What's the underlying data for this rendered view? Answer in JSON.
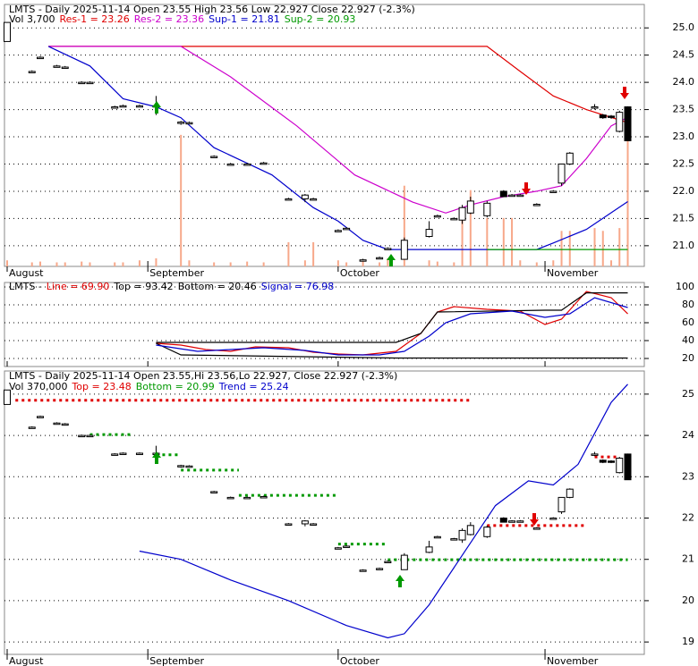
{
  "chart_data": [
    {
      "type": "candlestick",
      "title": "LMTS - Daily 2025-11-14 Open 23.55  High 23.56  Low 22.927  Close 22.927 (-2.3%)",
      "x": [
        0,
        3,
        4,
        6,
        7,
        9,
        10,
        13,
        14,
        16,
        18,
        21,
        22,
        25,
        27,
        29,
        31,
        34,
        36,
        37,
        40,
        41,
        43,
        45,
        46,
        48,
        51,
        52,
        54,
        55,
        56,
        58,
        60,
        61,
        62,
        64,
        66,
        67,
        68,
        71,
        72,
        73,
        74,
        75
      ],
      "open": [
        24.75,
        24.2,
        24.46,
        24.3,
        24.28,
        24.0,
        24.0,
        23.55,
        23.57,
        23.57,
        23.57,
        23.27,
        23.26,
        22.64,
        22.5,
        22.5,
        22.52,
        21.86,
        21.86,
        21.86,
        21.28,
        21.32,
        20.74,
        20.78,
        20.95,
        20.75,
        21.17,
        21.55,
        21.5,
        21.47,
        21.6,
        21.55,
        22.0,
        21.93,
        21.93,
        21.76,
        22.0,
        22.15,
        22.5,
        23.55,
        23.4,
        23.38,
        23.1,
        23.55
      ],
      "high": [
        25.1,
        24.22,
        24.48,
        24.32,
        24.3,
        24.02,
        24.02,
        23.57,
        23.59,
        23.59,
        23.75,
        23.29,
        23.28,
        22.66,
        22.52,
        22.52,
        22.54,
        21.88,
        21.95,
        21.88,
        21.3,
        21.34,
        20.76,
        20.8,
        20.97,
        21.15,
        21.45,
        21.57,
        21.52,
        21.75,
        21.9,
        21.82,
        22.02,
        21.95,
        21.95,
        21.78,
        22.02,
        22.5,
        22.72,
        23.6,
        23.42,
        23.4,
        23.48,
        23.56
      ],
      "low": [
        24.75,
        24.18,
        24.44,
        24.28,
        24.26,
        23.98,
        23.98,
        23.53,
        23.55,
        23.55,
        23.4,
        23.22,
        23.24,
        22.62,
        22.48,
        22.48,
        22.5,
        21.84,
        21.8,
        21.84,
        21.26,
        21.3,
        20.72,
        20.76,
        20.93,
        20.75,
        21.15,
        21.53,
        21.48,
        21.4,
        21.58,
        21.52,
        21.9,
        21.91,
        21.91,
        21.74,
        21.98,
        22.1,
        22.48,
        23.5,
        23.33,
        23.33,
        23.08,
        22.927
      ],
      "close": [
        25.1,
        24.2,
        24.46,
        24.3,
        24.28,
        24.0,
        24.0,
        23.55,
        23.57,
        23.57,
        23.57,
        23.27,
        23.26,
        22.64,
        22.5,
        22.5,
        22.52,
        21.86,
        21.93,
        21.86,
        21.28,
        21.32,
        20.74,
        20.78,
        20.95,
        21.1,
        21.3,
        21.55,
        21.5,
        21.7,
        21.82,
        21.78,
        21.9,
        21.93,
        21.93,
        21.76,
        22.0,
        22.5,
        22.7,
        23.55,
        23.35,
        23.36,
        23.45,
        22.927
      ],
      "volume": {
        "name": "Vol 3,700",
        "color": "#f7a88a",
        "values": [
          150,
          100,
          120,
          100,
          100,
          120,
          100,
          100,
          100,
          150,
          200,
          3260,
          150,
          100,
          100,
          120,
          100,
          600,
          150,
          600,
          150,
          100,
          150,
          100,
          200,
          2000,
          150,
          120,
          100,
          1200,
          1890,
          1200,
          1200,
          1200,
          150,
          100,
          150,
          880,
          880,
          950,
          880,
          150,
          950,
          3700
        ]
      },
      "series": [
        {
          "name": "Res-1 = 23.26",
          "color": "#e00000",
          "x": [
            5,
            58,
            62,
            66,
            70,
            75
          ],
          "values": [
            24.66,
            24.66,
            24.2,
            23.75,
            23.5,
            23.26
          ]
        },
        {
          "name": "Res-2 = 23.36",
          "color": "#cc00cc",
          "x": [
            5,
            21,
            27,
            35,
            42,
            49,
            53,
            56,
            60,
            64,
            67,
            70,
            73,
            75
          ],
          "values": [
            24.66,
            24.66,
            24.1,
            23.2,
            22.3,
            21.8,
            21.6,
            21.75,
            21.9,
            22.0,
            22.1,
            22.6,
            23.2,
            23.36
          ]
        },
        {
          "name": "Sup-1 = 21.81",
          "color": "#0000cc",
          "x": [
            5,
            10,
            14,
            18,
            21,
            25,
            32,
            37,
            40,
            43,
            46,
            64,
            66,
            70,
            75
          ],
          "values": [
            24.66,
            24.3,
            23.7,
            23.55,
            23.35,
            22.8,
            22.3,
            21.7,
            21.45,
            21.1,
            20.93,
            20.93,
            21.05,
            21.3,
            21.81
          ]
        },
        {
          "name": "Sup-2 = 20.93",
          "color": "#009900",
          "x": [
            58,
            75
          ],
          "values": [
            20.93,
            20.93
          ]
        }
      ],
      "xlim": [
        0,
        77
      ],
      "xticks": [
        {
          "value": 0,
          "label": "August"
        },
        {
          "value": 17,
          "label": "September"
        },
        {
          "value": 40,
          "label": "October"
        },
        {
          "value": 65,
          "label": "November"
        }
      ],
      "ylim": [
        20.62,
        25.43
      ],
      "yticks": [
        {
          "value": 25,
          "label": "25.0"
        },
        24.5,
        {
          "value": 24,
          "label": "24.0"
        },
        23.5,
        {
          "value": 23,
          "label": "23.0"
        },
        22.5,
        {
          "value": 22,
          "label": "22.0"
        },
        21.5,
        {
          "value": 21,
          "label": "21.0"
        }
      ],
      "grid": true
    },
    {
      "type": "line",
      "title": "LMTS -",
      "series": [
        {
          "name": "Line = 69.90",
          "color": "#e00000",
          "x": [
            18,
            21,
            24,
            27,
            30,
            34,
            37,
            40,
            43,
            47,
            50,
            52,
            54,
            58,
            62,
            65,
            67,
            70,
            73,
            75
          ],
          "values": [
            37,
            35,
            30,
            28,
            33,
            32,
            27,
            25,
            24,
            28,
            48,
            72,
            78,
            75,
            73,
            58,
            64,
            95,
            88,
            69.9
          ]
        },
        {
          "name": "Top = 93.42",
          "color": "#000000",
          "x": [
            18,
            47,
            50,
            52,
            65,
            67,
            70,
            75
          ],
          "values": [
            38,
            38,
            48,
            72,
            74,
            74,
            93.42,
            93.42
          ]
        },
        {
          "name": "Bottom = 20.46",
          "color": "#000000",
          "x": [
            18,
            21,
            47,
            75
          ],
          "values": [
            37,
            24,
            20.5,
            20.46
          ]
        },
        {
          "name": "Signal = 76.98",
          "color": "#0000cc",
          "x": [
            18,
            23,
            27,
            31,
            36,
            40,
            45,
            48,
            51,
            53,
            56,
            61,
            65,
            68,
            71,
            75
          ],
          "values": [
            35,
            28,
            30,
            32,
            29,
            24,
            24,
            28,
            45,
            60,
            70,
            73,
            66,
            70,
            88,
            76.98
          ]
        }
      ],
      "xlim": [
        0,
        77
      ],
      "ylim": [
        11,
        105
      ],
      "yticks": [
        100,
        80,
        60,
        40,
        20
      ],
      "grid": true
    },
    {
      "type": "candlestick",
      "title": "LMTS - Daily 2025-11-14 Open 23.55,Hi 23.56,Lo 22.927, Close 22.927 (-2.3%)",
      "volume_label": "Vol 370,000",
      "series": [
        {
          "name": "Top = 23.48",
          "color": "#e00000",
          "style": "dotted",
          "segments": [
            {
              "x": [
                1,
                56
              ],
              "value": 24.85
            },
            {
              "x": [
                58,
                70
              ],
              "value": 21.82
            },
            {
              "x": [
                71,
                74
              ],
              "value": 23.48
            }
          ]
        },
        {
          "name": "Bottom = 20.99",
          "color": "#009900",
          "style": "dotted",
          "segments": [
            {
              "x": [
                10,
                15
              ],
              "value": 24.02
            },
            {
              "x": [
                18,
                21
              ],
              "value": 23.53
            },
            {
              "x": [
                21,
                28
              ],
              "value": 23.16
            },
            {
              "x": [
                28,
                40
              ],
              "value": 22.55
            },
            {
              "x": [
                40,
                46
              ],
              "value": 21.37
            },
            {
              "x": [
                46,
                75
              ],
              "value": 20.99
            }
          ]
        },
        {
          "name": "Trend = 25.24",
          "color": "#0000cc",
          "x": [
            16,
            21,
            27,
            34,
            41,
            46,
            48,
            51,
            54,
            59,
            63,
            66,
            69,
            73,
            75
          ],
          "values": [
            21.2,
            21.0,
            20.5,
            20.0,
            19.4,
            19.1,
            19.2,
            19.9,
            20.8,
            22.3,
            22.9,
            22.8,
            23.3,
            24.8,
            25.24
          ]
        }
      ],
      "xlim": [
        0,
        77
      ],
      "ylim": [
        18.7,
        25.56
      ],
      "yticks": [
        25,
        24,
        23,
        22,
        21,
        20,
        19
      ],
      "grid": true
    }
  ]
}
